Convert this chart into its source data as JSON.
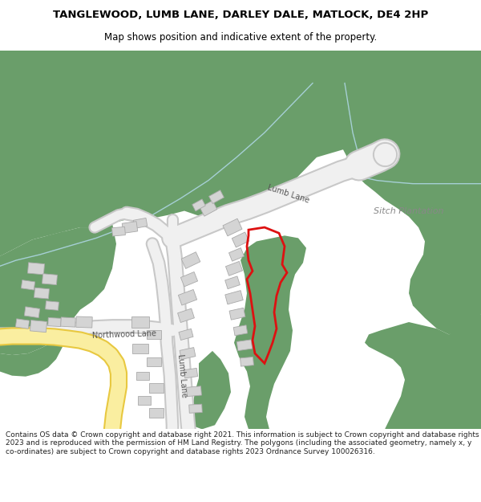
{
  "title": "TANGLEWOOD, LUMB LANE, DARLEY DALE, MATLOCK, DE4 2HP",
  "subtitle": "Map shows position and indicative extent of the property.",
  "footer": "Contains OS data © Crown copyright and database right 2021. This information is subject to Crown copyright and database rights 2023 and is reproduced with the permission of HM Land Registry. The polygons (including the associated geometry, namely x, y co-ordinates) are subject to Crown copyright and database rights 2023 Ordnance Survey 100026316.",
  "bg": "#ffffff",
  "green": "#6a9e6a",
  "road_fill": "#f0f0f0",
  "road_edge": "#c8c8c8",
  "bld_fill": "#d4d4d4",
  "bld_edge": "#aaaaaa",
  "yellow_fill": "#faeea0",
  "yellow_edge": "#e8c840",
  "red": "#dd1111",
  "blue_stream": "#b0d8e8",
  "label_color": "#555555",
  "sitch_color": "#888888",
  "title_size": 9.5,
  "subtitle_size": 8.5,
  "footer_size": 6.5
}
